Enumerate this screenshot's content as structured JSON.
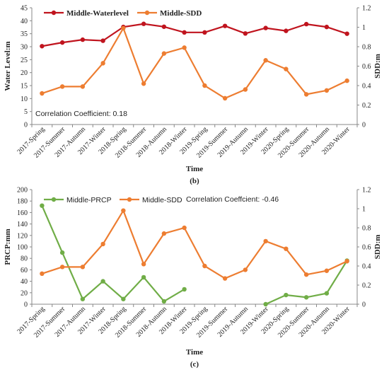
{
  "chart_data": [
    {
      "type": "line",
      "panel": "(b)",
      "categories": [
        "2017-Spring",
        "2017-Summer",
        "2017-Autumn",
        "2017-Winter",
        "2018-Spring",
        "2018-Summer",
        "2018-Autumn",
        "2018-Winter",
        "2019-Spring",
        "2019-Summer",
        "2019-Autumn",
        "2019-Winter",
        "2020-Spring",
        "2020-Summer",
        "2020-Autumn",
        "2020-Winter"
      ],
      "series": [
        {
          "name": "Middle-Waterlevel",
          "axis": "left",
          "color": "#c0141e",
          "marker": "circle",
          "values": [
            30.2,
            31.6,
            32.7,
            32.3,
            37.6,
            38.8,
            37.7,
            35.5,
            35.5,
            38.0,
            35.1,
            37.2,
            36.1,
            38.7,
            37.6,
            35.0
          ]
        },
        {
          "name": "Middle-SDD",
          "axis": "right",
          "color": "#ed7d31",
          "marker": "circle",
          "values": [
            0.32,
            0.39,
            0.39,
            0.63,
            0.99,
            0.42,
            0.73,
            0.79,
            0.4,
            0.27,
            0.36,
            0.66,
            0.57,
            0.31,
            0.35,
            0.45
          ]
        }
      ],
      "xlabel": "Time",
      "ylabel": "Water Level:m",
      "y2label": "SDD:m",
      "ylim": [
        0,
        45
      ],
      "yticks": [
        0,
        5,
        10,
        15,
        20,
        25,
        30,
        35,
        40,
        45
      ],
      "y2lim": [
        0,
        1.2
      ],
      "y2ticks": [
        "0",
        "0.2",
        "0.4",
        "0.6",
        "0.8",
        "1",
        "1.2"
      ],
      "annotation": "Correlation Coefficient: 0.18",
      "legend_position": "top-left",
      "grid": false
    },
    {
      "type": "line",
      "panel": "(c)",
      "categories": [
        "2017-Spring",
        "2017-Summer",
        "2017-Autumn",
        "2017-Winter",
        "2018-Spring",
        "2018-Summer",
        "2018-Autumn",
        "2018-Winter",
        "2019-Spring",
        "2019-Summer",
        "2019-Autumn",
        "2019-Winter",
        "2020-Spring",
        "2020-Summer",
        "2020-Autumn",
        "2020-Winter"
      ],
      "series": [
        {
          "name": "Middle-PRCP",
          "axis": "left",
          "color": "#70ad47",
          "marker": "circle",
          "values": [
            172,
            90,
            9,
            40,
            9,
            47,
            5,
            26,
            null,
            null,
            null,
            0,
            16,
            12,
            19,
            76
          ]
        },
        {
          "name": "Middle-SDD",
          "axis": "right",
          "color": "#ed7d31",
          "marker": "circle",
          "values": [
            0.32,
            0.39,
            0.39,
            0.63,
            0.98,
            0.42,
            0.74,
            0.8,
            0.4,
            0.27,
            0.36,
            0.66,
            0.58,
            0.31,
            0.35,
            0.45
          ]
        }
      ],
      "xlabel": "Time",
      "ylabel": "PRCP:mm",
      "y2label": "SDD:m",
      "ylim": [
        0,
        200
      ],
      "yticks": [
        0,
        20,
        40,
        60,
        80,
        100,
        120,
        140,
        160,
        180,
        200
      ],
      "y2lim": [
        0,
        1.2
      ],
      "y2ticks": [
        "0",
        "0.2",
        "0.4",
        "0.6",
        "0.8",
        "1",
        "1.2"
      ],
      "annotation": "Correlation Coeffcient: -0.46",
      "legend_position": "top-left",
      "grid": false
    }
  ]
}
